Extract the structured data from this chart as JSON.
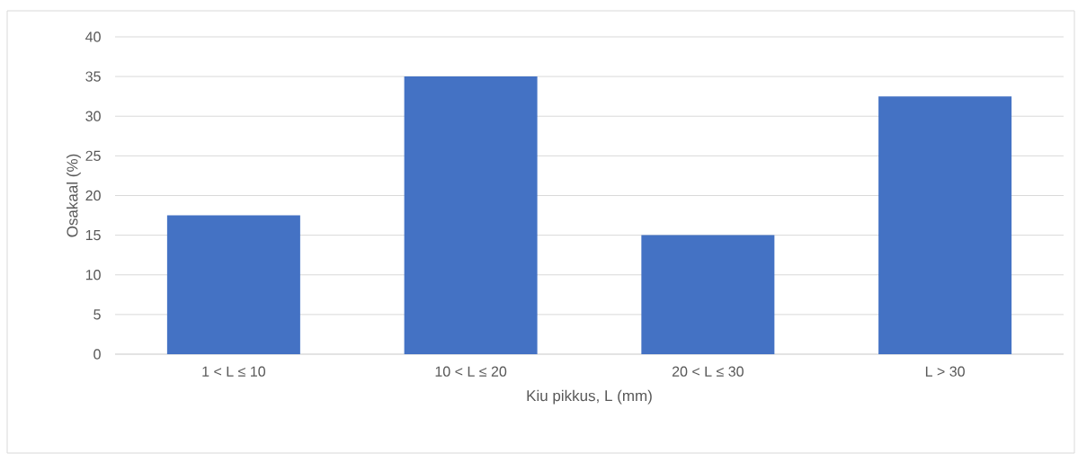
{
  "chart_data": {
    "type": "bar",
    "xlabel": "Kiu pikkus, L (mm)",
    "ylabel": "Osakaal (%)",
    "categories": [
      "1 < L ≤ 10",
      "10 < L ≤ 20",
      "20 < L ≤ 30",
      "L > 30"
    ],
    "values": [
      17.5,
      35,
      15,
      32.5
    ],
    "color": "#4472c4",
    "ylim": [
      0,
      40
    ],
    "yticks": [
      0,
      5,
      10,
      15,
      20,
      25,
      30,
      35,
      40
    ],
    "grid": "y"
  }
}
